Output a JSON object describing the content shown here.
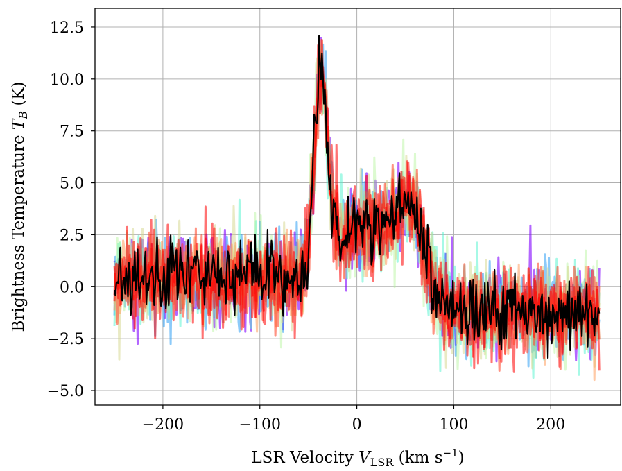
{
  "chart_data": {
    "type": "line",
    "title": "",
    "xlabel": "LSR Velocity V_LSR (km s^-1)",
    "ylabel": "Brightness Temperature T_B (K)",
    "xlim": [
      -270,
      272
    ],
    "ylim": [
      -5.7,
      13.4
    ],
    "xticks": [
      -200,
      -100,
      0,
      100,
      200
    ],
    "xtick_labels": [
      "−200",
      "−100",
      "0",
      "100",
      "200"
    ],
    "yticks": [
      -5.0,
      -2.5,
      0.0,
      2.5,
      5.0,
      7.5,
      10.0,
      12.5
    ],
    "ytick_labels": [
      "−5.0",
      "−2.5",
      "0.0",
      "2.5",
      "5.0",
      "7.5",
      "10.0",
      "12.5"
    ],
    "grid": true,
    "x_range": [
      -250,
      250
    ],
    "series": [
      {
        "color": "#8000ff",
        "opacity": 0.6,
        "noise": 1.1,
        "seed": 11
      },
      {
        "color": "#1996f3",
        "opacity": 0.5,
        "noise": 1.05,
        "seed": 23
      },
      {
        "color": "#4df3ce",
        "opacity": 0.5,
        "noise": 1.1,
        "seed": 37
      },
      {
        "color": "#b2f396",
        "opacity": 0.45,
        "noise": 1.15,
        "seed": 41
      },
      {
        "color": "#d4d68a",
        "opacity": 0.5,
        "noise": 1.1,
        "seed": 53
      },
      {
        "color": "#ff964f",
        "opacity": 0.5,
        "noise": 1.05,
        "seed": 67
      },
      {
        "color": "#ff3a1e",
        "opacity": 0.55,
        "noise": 1.0,
        "seed": 71
      },
      {
        "color": "#ff0000",
        "opacity": 0.55,
        "noise": 1.0,
        "seed": 83
      },
      {
        "color": "#ff0000",
        "opacity": 0.55,
        "noise": 1.0,
        "seed": 97
      },
      {
        "color": "#000000",
        "opacity": 1.0,
        "noise": 0.85,
        "seed": 5
      }
    ],
    "profile": {
      "baseline_left": 0.4,
      "baseline_right": -1.2,
      "components": [
        {
          "center": -37,
          "amplitude": 9.3,
          "width": 7
        },
        {
          "center": -10,
          "amplitude": 1.6,
          "width": 20
        },
        {
          "center": 30,
          "amplitude": 2.0,
          "width": 25
        },
        {
          "center": 55,
          "amplitude": 2.3,
          "width": 14
        }
      ]
    }
  }
}
